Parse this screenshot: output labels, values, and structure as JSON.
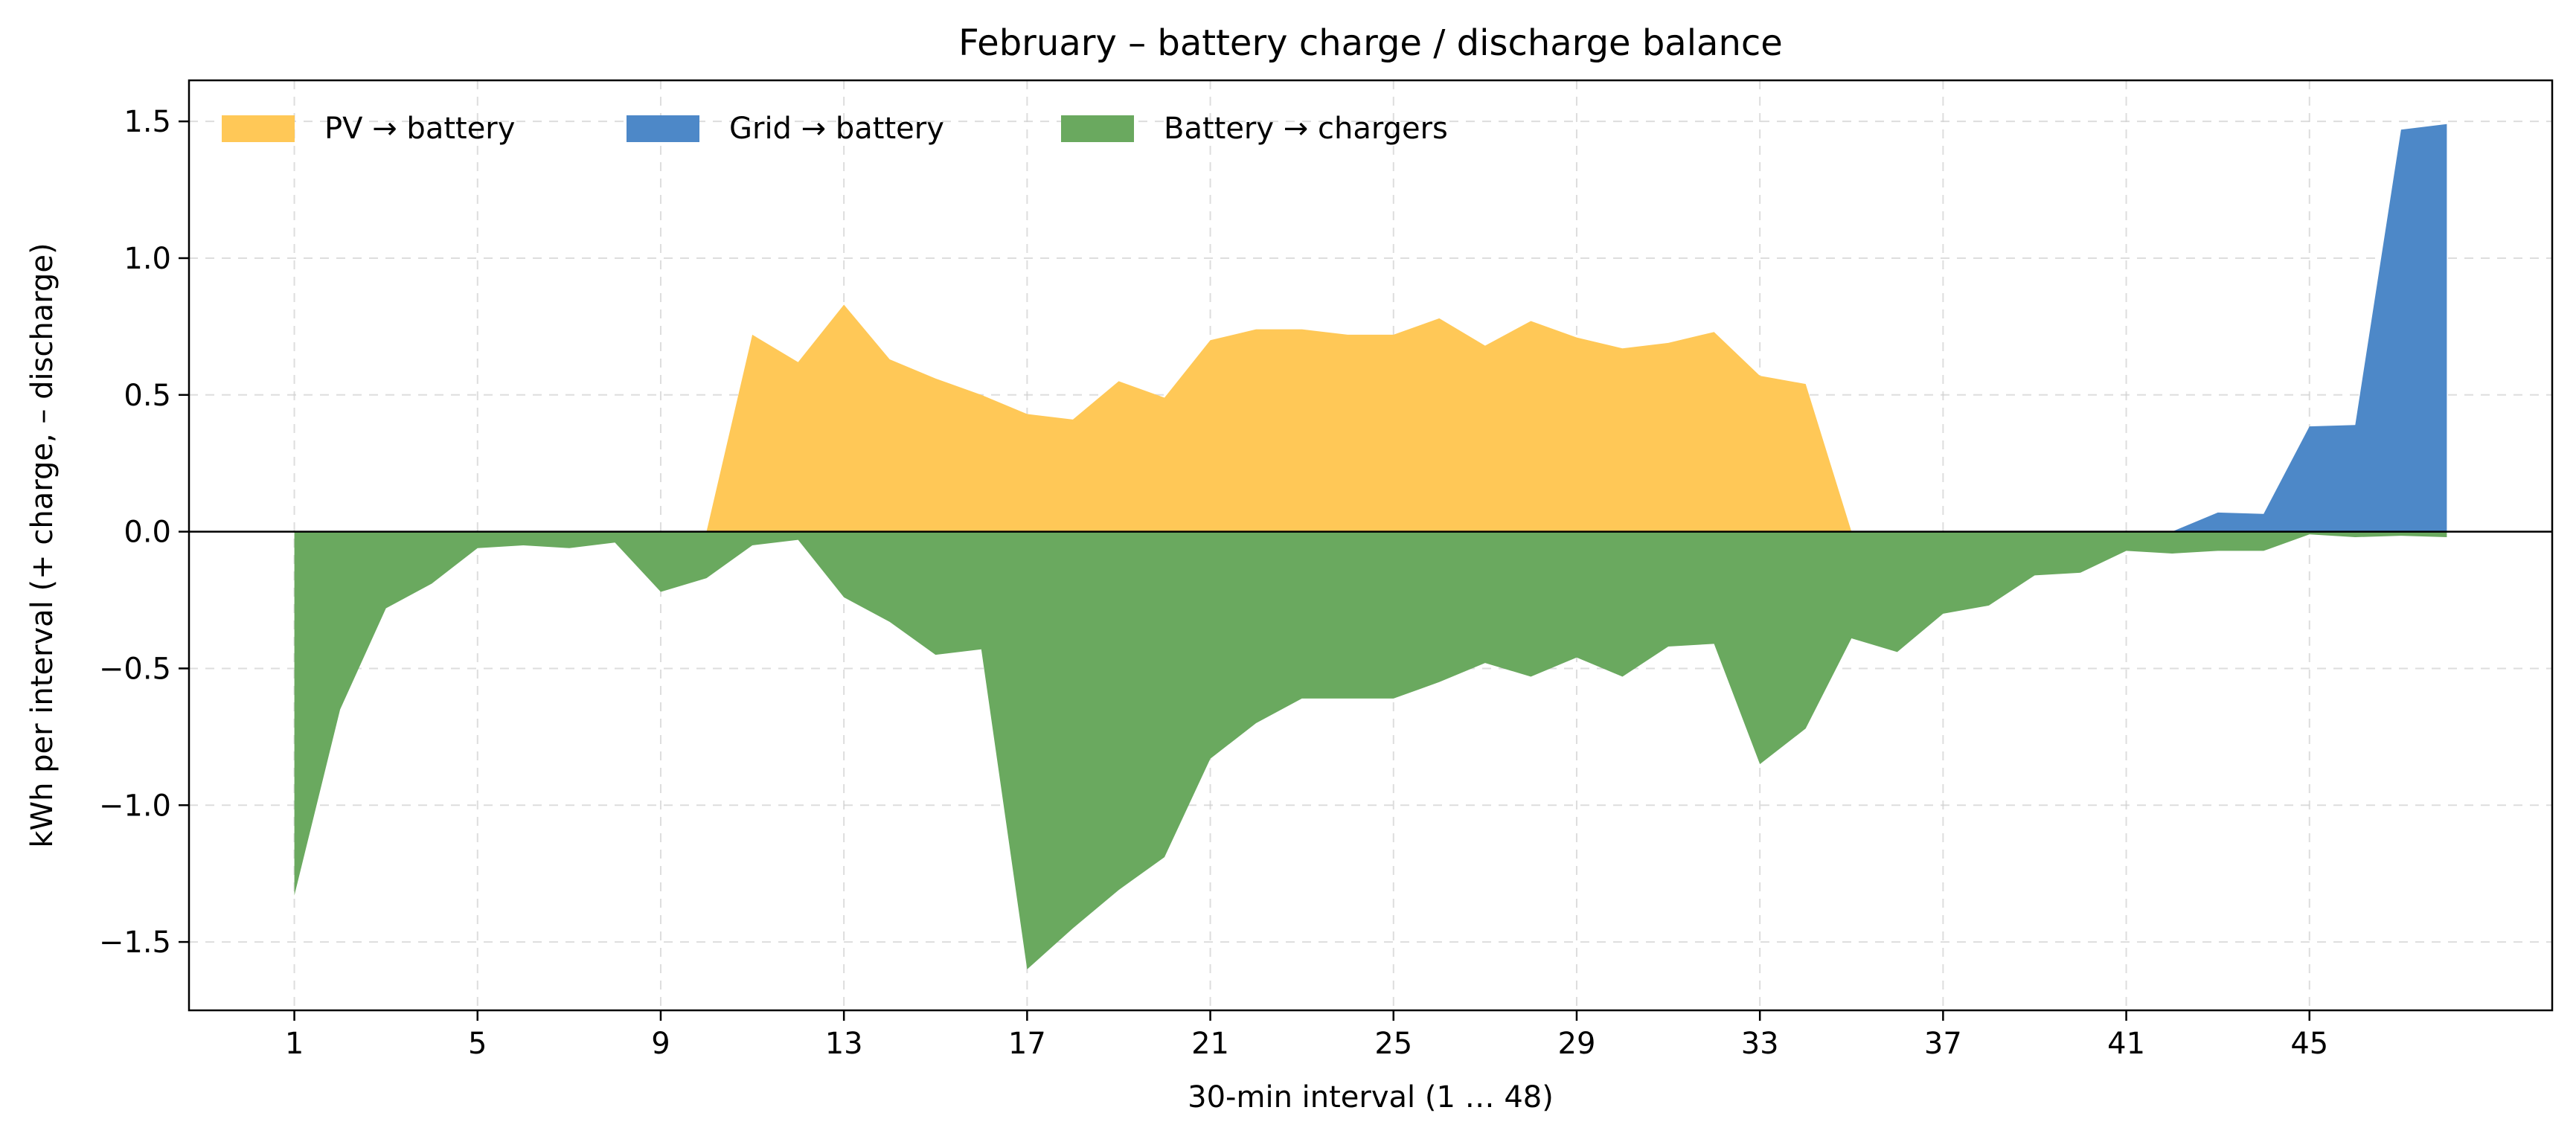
{
  "chart_data": {
    "type": "area",
    "title": "February – battery charge / discharge balance",
    "xlabel": "30-min interval (1 … 48)",
    "ylabel": "kWh per interval (+ charge, – discharge)",
    "xlim": [
      -1.3,
      50.3
    ],
    "ylim": [
      -1.75,
      1.65
    ],
    "xticks": [
      1,
      5,
      9,
      13,
      17,
      21,
      25,
      29,
      33,
      37,
      41,
      45
    ],
    "yticks": [
      -1.5,
      -1.0,
      -0.5,
      0.0,
      0.5,
      1.0,
      1.5
    ],
    "ytick_labels": [
      "−1.5",
      "−1.0",
      "−0.5",
      "0.0",
      "0.5",
      "1.0",
      "1.5"
    ],
    "grid": true,
    "legend_position": "top-left",
    "x": [
      1,
      2,
      3,
      4,
      5,
      6,
      7,
      8,
      9,
      10,
      11,
      12,
      13,
      14,
      15,
      16,
      17,
      18,
      19,
      20,
      21,
      22,
      23,
      24,
      25,
      26,
      27,
      28,
      29,
      30,
      31,
      32,
      33,
      34,
      35,
      36,
      37,
      38,
      39,
      40,
      41,
      42,
      43,
      44,
      45,
      46,
      47,
      48
    ],
    "series": [
      {
        "name": "PV → battery",
        "color": "#FFC857",
        "stack": "positive",
        "values": [
          0,
          0,
          0,
          0,
          0,
          0,
          0,
          0,
          0,
          0,
          0.72,
          0.62,
          0.83,
          0.63,
          0.56,
          0.5,
          0.43,
          0.41,
          0.55,
          0.49,
          0.7,
          0.74,
          0.74,
          0.72,
          0.72,
          0.78,
          0.68,
          0.77,
          0.71,
          0.67,
          0.69,
          0.73,
          0.57,
          0.54,
          0,
          0,
          0,
          0,
          0,
          0,
          0,
          0,
          0,
          0,
          0,
          0,
          0,
          0
        ]
      },
      {
        "name": "Grid → battery",
        "color": "#4D88C8",
        "stack": "positive",
        "values": [
          0,
          0,
          0,
          0,
          0,
          0,
          0,
          0,
          0,
          0,
          0,
          0,
          0,
          0,
          0,
          0,
          0,
          0,
          0,
          0,
          0,
          0,
          0,
          0,
          0,
          0,
          0,
          0,
          0,
          0,
          0,
          0,
          0,
          0,
          0,
          0,
          0,
          0,
          0,
          0,
          0,
          0,
          0.07,
          0.065,
          0.385,
          0.39,
          1.47,
          1.49
        ]
      },
      {
        "name": "Battery → chargers",
        "color": "#6AA95F",
        "stack": "negative",
        "values": [
          -1.33,
          -0.65,
          -0.28,
          -0.19,
          -0.06,
          -0.05,
          -0.06,
          -0.04,
          -0.22,
          -0.17,
          -0.05,
          -0.03,
          -0.24,
          -0.33,
          -0.45,
          -0.43,
          -1.6,
          -1.45,
          -1.31,
          -1.19,
          -0.83,
          -0.7,
          -0.61,
          -0.61,
          -0.61,
          -0.55,
          -0.48,
          -0.53,
          -0.46,
          -0.53,
          -0.42,
          -0.41,
          -0.85,
          -0.72,
          -0.39,
          -0.44,
          -0.3,
          -0.27,
          -0.16,
          -0.15,
          -0.07,
          -0.08,
          -0.07,
          -0.07,
          -0.01,
          -0.02,
          -0.015,
          -0.02
        ]
      }
    ]
  }
}
